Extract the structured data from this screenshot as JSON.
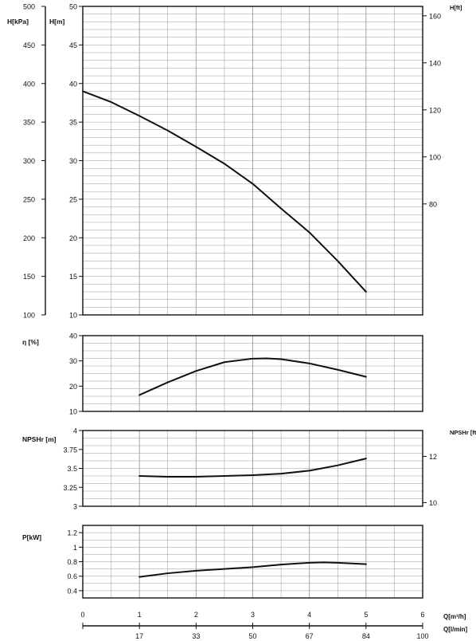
{
  "chart_data": [
    {
      "type": "line",
      "panel": "head",
      "ylabel_left_outer": "H[kPa]",
      "ylabel_left_inner": "H[m]",
      "ylabel_right": "H[ft]",
      "ylim": [
        10,
        50
      ],
      "yticks": [
        "10",
        "15",
        "20",
        "25",
        "30",
        "35",
        "40",
        "45",
        "50"
      ],
      "outer_ylim": [
        100,
        500
      ],
      "outer_yticks": [
        "100",
        "150",
        "200",
        "250",
        "300",
        "350",
        "400",
        "450",
        "500"
      ],
      "right_ylim": [
        32.8,
        164.0
      ],
      "right_yticks": [
        "80",
        "100",
        "120",
        "140",
        "160"
      ],
      "grid": true,
      "series": [
        {
          "x": [
            0,
            0.5,
            1,
            1.5,
            2,
            2.5,
            3,
            3.5,
            4,
            4.5,
            5
          ],
          "y": [
            39.0,
            37.6,
            35.8,
            33.9,
            31.8,
            29.6,
            27.0,
            23.8,
            20.7,
            17.0,
            13.0
          ]
        }
      ]
    },
    {
      "type": "line",
      "panel": "efficiency",
      "ylabel_left": "η [%]",
      "ylim": [
        10,
        40
      ],
      "yticks": [
        "10",
        "20",
        "30",
        "40"
      ],
      "grid": true,
      "series": [
        {
          "x": [
            1,
            1.5,
            2,
            2.5,
            3,
            3.25,
            3.5,
            4,
            4.5,
            5
          ],
          "y": [
            16.5,
            21.5,
            26.0,
            29.5,
            30.9,
            31.0,
            30.7,
            29.0,
            26.5,
            23.7
          ]
        }
      ]
    },
    {
      "type": "line",
      "panel": "npshr",
      "ylabel_left": "NPSHr [m]",
      "ylabel_right": "NPSHr [ft]",
      "ylim": [
        3,
        4
      ],
      "yticks": [
        "3",
        "3.25",
        "3.5",
        "3.75",
        "4"
      ],
      "right_ylim": [
        9.84,
        13.12
      ],
      "right_yticks": [
        "10",
        "12"
      ],
      "grid": true,
      "series": [
        {
          "x": [
            1,
            1.5,
            2,
            2.5,
            3,
            3.5,
            4,
            4.5,
            5
          ],
          "y": [
            3.4,
            3.39,
            3.39,
            3.4,
            3.41,
            3.43,
            3.47,
            3.54,
            3.63
          ]
        }
      ]
    },
    {
      "type": "line",
      "panel": "power",
      "ylabel_left": "P[kW]",
      "ylim": [
        0.3,
        1.3
      ],
      "yticks": [
        "0.4",
        "0.6",
        "0.8",
        "1",
        "1.2"
      ],
      "grid": true,
      "series": [
        {
          "x": [
            1,
            1.5,
            2,
            2.5,
            3,
            3.5,
            4,
            4.25,
            4.5,
            5
          ],
          "y": [
            0.59,
            0.64,
            0.675,
            0.7,
            0.725,
            0.76,
            0.785,
            0.79,
            0.785,
            0.765
          ]
        }
      ]
    }
  ],
  "x_axis": {
    "xlim": [
      0,
      6
    ],
    "label_m3h": "Q[m³/h]",
    "ticks_m3h": [
      "0",
      "1",
      "2",
      "3",
      "4",
      "5",
      "6"
    ],
    "label_lmin": "Q[l/min]",
    "ticks_lmin": [
      "17",
      "33",
      "50",
      "67",
      "84",
      "100"
    ]
  },
  "colors": {
    "curve": "#111111",
    "grid": "#9a9a9a",
    "frame": "#111111"
  }
}
